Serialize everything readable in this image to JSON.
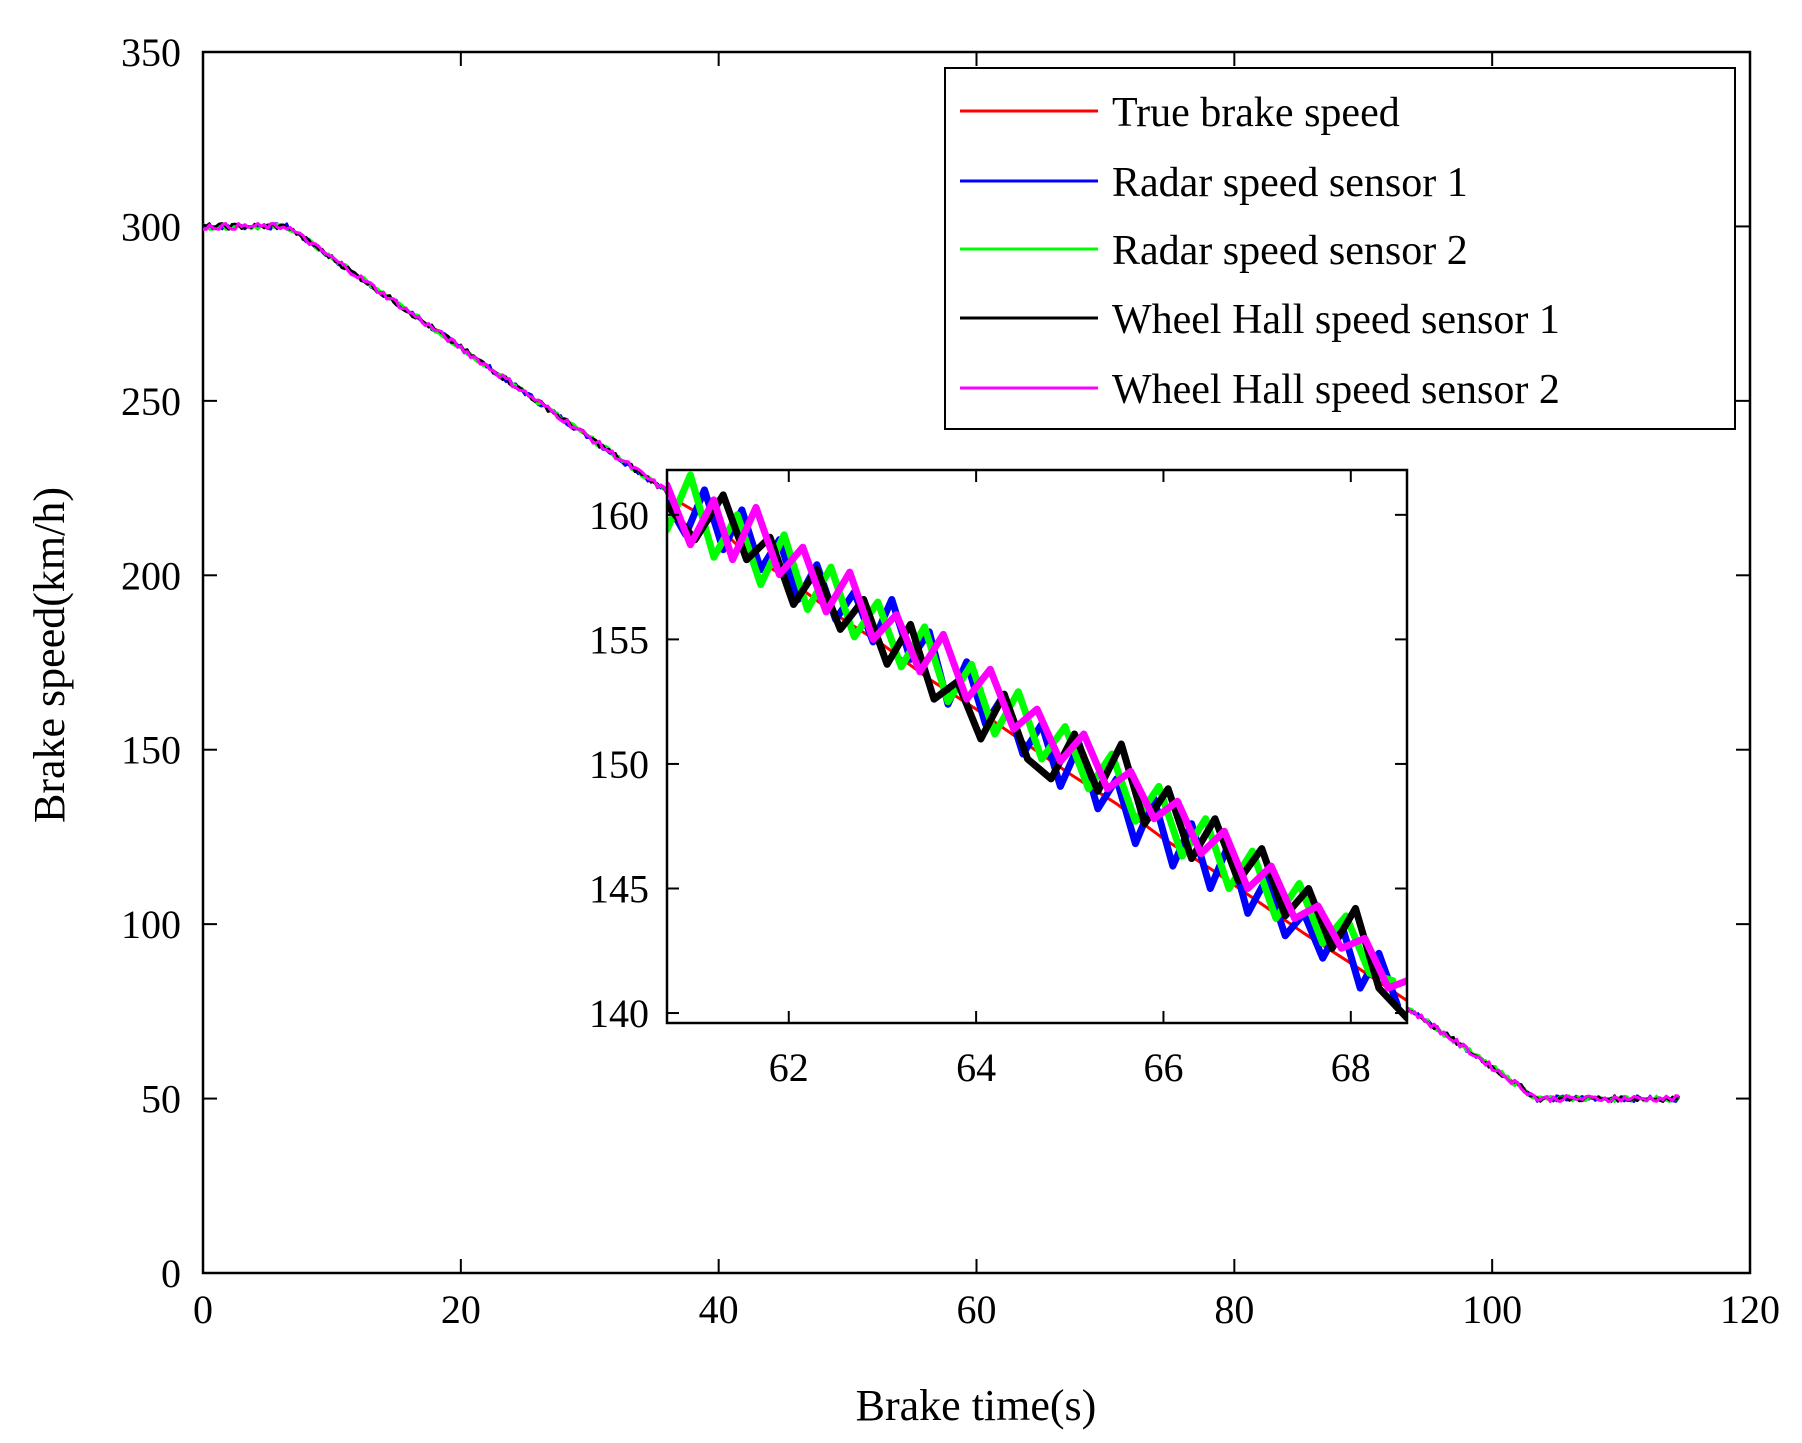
{
  "chart_data": [
    {
      "type": "line",
      "title": "",
      "xlabel": "Brake time(s)",
      "ylabel": "Brake speed(km/h)",
      "xlim": [
        0,
        120
      ],
      "ylim": [
        0,
        350
      ],
      "xticks": [
        0,
        20,
        40,
        60,
        80,
        100,
        120
      ],
      "yticks": [
        0,
        50,
        100,
        150,
        200,
        250,
        300,
        350
      ],
      "grid": false,
      "legend_position": "top-right",
      "series": [
        {
          "name": "True brake speed",
          "color": "#ff0000",
          "x": [
            0,
            6.5,
            103.5,
            114.5
          ],
          "y": [
            300,
            300,
            50,
            50
          ]
        },
        {
          "name": "Radar speed sensor 1",
          "color": "#0000ff",
          "x": [
            0,
            6.5,
            103.5,
            114.5
          ],
          "y": [
            300,
            300,
            50,
            50
          ]
        },
        {
          "name": "Radar speed sensor 2",
          "color": "#00ff00",
          "x": [
            0,
            6.5,
            103.5,
            114.5
          ],
          "y": [
            300,
            300,
            50,
            50
          ]
        },
        {
          "name": "Wheel Hall speed sensor 1",
          "color": "#000000",
          "x": [
            0,
            6.5,
            103.5,
            114.5
          ],
          "y": [
            300,
            300,
            50,
            50
          ]
        },
        {
          "name": "Wheel Hall speed sensor 2",
          "color": "#ff00ff",
          "x": [
            0,
            6.5,
            103.5,
            114.5
          ],
          "y": [
            300,
            300,
            50,
            50
          ]
        }
      ]
    },
    {
      "type": "line",
      "title": "",
      "xlabel": "",
      "ylabel": "",
      "xlim": [
        60.7,
        68.6
      ],
      "ylim": [
        139.6,
        161.8
      ],
      "xticks": [
        62,
        64,
        66,
        68
      ],
      "yticks": [
        140,
        145,
        150,
        155,
        160
      ],
      "grid": false,
      "series": [
        {
          "name": "True brake speed",
          "color": "#ff0000",
          "x": [
            60.7,
            61.2,
            61.5,
            62.0,
            62.5,
            63.0,
            63.5,
            64.0,
            64.5,
            65.0,
            65.5,
            66.0,
            66.5,
            67.0,
            67.5,
            68.0,
            68.6
          ],
          "y": [
            160.8,
            159.7,
            158.6,
            157.4,
            156.0,
            154.8,
            153.4,
            152.2,
            150.9,
            149.6,
            148.4,
            147.0,
            145.8,
            144.5,
            143.2,
            142.0,
            140.5
          ]
        },
        {
          "name": "Radar speed sensor 1",
          "color": "#0000ff",
          "x": [
            60.7,
            60.9,
            61.1,
            61.3,
            61.5,
            61.7,
            61.9,
            62.1,
            62.3,
            62.5,
            62.7,
            62.9,
            63.1,
            63.3,
            63.5,
            63.7,
            63.9,
            64.1,
            64.3,
            64.5,
            64.7,
            64.9,
            65.1,
            65.3,
            65.5,
            65.7,
            65.9,
            66.1,
            66.3,
            66.5,
            66.7,
            66.9,
            67.1,
            67.3,
            67.5,
            67.7,
            67.9,
            68.1,
            68.3,
            68.5
          ],
          "y": [
            160.5,
            159.2,
            161.0,
            158.6,
            160.2,
            157.8,
            159.0,
            156.6,
            158.0,
            155.8,
            156.9,
            154.9,
            156.6,
            154.2,
            155.3,
            152.4,
            154.1,
            151.6,
            152.8,
            150.4,
            151.6,
            149.1,
            150.8,
            148.2,
            149.4,
            146.8,
            148.6,
            145.9,
            147.6,
            145.0,
            146.8,
            144.0,
            145.4,
            143.1,
            144.0,
            142.2,
            143.6,
            141.0,
            142.4,
            140.3
          ]
        },
        {
          "name": "Radar speed sensor 2",
          "color": "#00ff00",
          "x": [
            60.7,
            60.95,
            61.2,
            61.45,
            61.7,
            61.95,
            62.2,
            62.45,
            62.7,
            62.95,
            63.2,
            63.45,
            63.7,
            63.95,
            64.2,
            64.45,
            64.7,
            64.95,
            65.2,
            65.45,
            65.7,
            65.95,
            66.2,
            66.45,
            66.7,
            66.95,
            67.2,
            67.45,
            67.7,
            67.95,
            68.2,
            68.45
          ],
          "y": [
            159.4,
            161.6,
            158.3,
            160.0,
            157.2,
            159.2,
            156.2,
            157.9,
            155.1,
            156.5,
            153.9,
            155.5,
            152.5,
            154.0,
            151.2,
            152.9,
            150.2,
            151.5,
            149.0,
            150.4,
            147.7,
            149.1,
            146.3,
            147.8,
            145.0,
            146.5,
            143.8,
            145.2,
            142.8,
            143.9,
            141.6,
            141.3
          ]
        },
        {
          "name": "Wheel Hall speed sensor 1",
          "color": "#000000",
          "x": [
            60.7,
            61.0,
            61.3,
            61.55,
            61.8,
            62.05,
            62.3,
            62.55,
            62.8,
            63.05,
            63.3,
            63.55,
            63.8,
            64.05,
            64.3,
            64.55,
            64.8,
            65.05,
            65.3,
            65.55,
            65.8,
            66.05,
            66.3,
            66.55,
            66.8,
            67.05,
            67.3,
            67.55,
            67.8,
            68.05,
            68.3,
            68.6
          ],
          "y": [
            160.4,
            159.0,
            160.8,
            158.2,
            159.1,
            156.4,
            157.8,
            155.4,
            156.6,
            154.0,
            155.6,
            152.6,
            153.3,
            151.0,
            152.8,
            150.2,
            149.4,
            151.2,
            148.9,
            150.8,
            147.6,
            149.0,
            146.2,
            147.8,
            145.3,
            146.6,
            143.9,
            145.0,
            142.6,
            144.2,
            141.0,
            139.8
          ]
        },
        {
          "name": "Wheel Hall speed sensor 2",
          "color": "#ff00ff",
          "x": [
            60.7,
            60.95,
            61.2,
            61.4,
            61.65,
            61.9,
            62.15,
            62.4,
            62.65,
            62.9,
            63.15,
            63.4,
            63.65,
            63.9,
            64.15,
            64.4,
            64.65,
            64.9,
            65.15,
            65.4,
            65.65,
            65.9,
            66.15,
            66.4,
            66.65,
            66.9,
            67.15,
            67.4,
            67.65,
            67.9,
            68.15,
            68.4,
            68.6
          ],
          "y": [
            161.2,
            158.8,
            160.6,
            158.2,
            160.3,
            157.6,
            158.7,
            156.1,
            157.7,
            155.0,
            156.0,
            153.7,
            155.2,
            152.6,
            153.8,
            151.4,
            152.2,
            150.1,
            151.2,
            149.0,
            149.7,
            147.8,
            148.5,
            146.4,
            147.3,
            145.0,
            145.9,
            143.8,
            144.3,
            142.6,
            143.0,
            141.0,
            141.3
          ]
        }
      ]
    }
  ],
  "colors": {
    "true": "#ff0000",
    "radar1": "#0000ff",
    "radar2": "#00ff00",
    "hall1": "#000000",
    "hall2": "#ff00ff"
  }
}
